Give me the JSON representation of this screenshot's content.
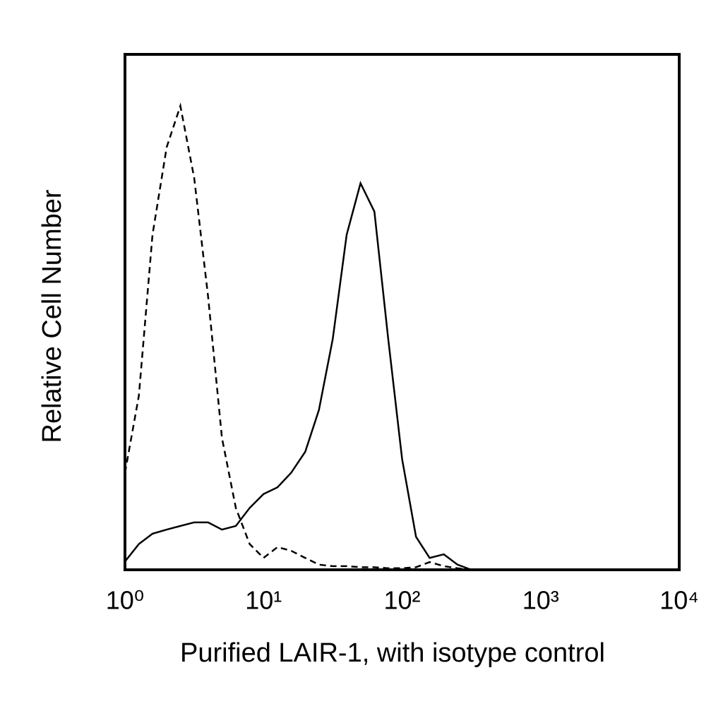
{
  "chart_data": {
    "type": "line",
    "xlabel": "Purified LAIR-1, with isotype control",
    "ylabel": "Relative Cell Number",
    "xscale": "log",
    "xlim": [
      1,
      10000
    ],
    "ylim": [
      0,
      100
    ],
    "xticks": [
      {
        "value": 1,
        "label": "10⁰"
      },
      {
        "value": 10,
        "label": "10¹"
      },
      {
        "value": 100,
        "label": "10²"
      },
      {
        "value": 1000,
        "label": "10³"
      },
      {
        "value": 10000,
        "label": "10⁴"
      }
    ],
    "grid": false,
    "x": [
      1,
      1.26,
      1.58,
      2,
      2.51,
      3.16,
      3.98,
      5.01,
      6.31,
      7.94,
      10,
      12.6,
      15.8,
      20,
      25.1,
      31.6,
      39.8,
      50.1,
      63.1,
      79.4,
      100,
      126,
      158,
      200,
      251,
      316
    ],
    "series": [
      {
        "color": "#000000",
        "style": "dashed",
        "values": [
          18.8,
          33.8,
          65,
          82,
          90,
          76,
          53,
          25.6,
          12,
          5,
          2.3,
          4.4,
          3.7,
          2.3,
          1,
          0.7,
          0.7,
          0.5,
          0.5,
          0.3,
          0.3,
          0.5,
          1.5,
          0.7,
          0.3,
          0
        ]
      },
      {
        "color": "#000000",
        "style": "solid",
        "values": [
          1.6,
          5,
          7,
          7.8,
          8.5,
          9.2,
          9.2,
          7.8,
          8.5,
          12,
          14.7,
          16,
          18.8,
          22.9,
          31,
          44.8,
          65,
          75,
          69.5,
          44.8,
          21.5,
          6.4,
          2.3,
          3,
          1,
          0
        ]
      }
    ]
  }
}
